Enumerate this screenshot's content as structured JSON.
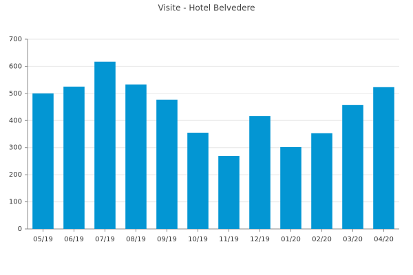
{
  "chart_data": {
    "type": "bar",
    "title": "Visite - Hotel Belvedere",
    "categories": [
      "05/19",
      "06/19",
      "07/19",
      "08/19",
      "09/19",
      "10/19",
      "11/19",
      "12/19",
      "01/20",
      "02/20",
      "03/20",
      "04/20"
    ],
    "values": [
      500,
      525,
      617,
      533,
      477,
      355,
      269,
      416,
      302,
      353,
      457,
      523
    ],
    "color": "#0396d3",
    "ylim": [
      0,
      700
    ],
    "yticks": [
      0,
      100,
      200,
      300,
      400,
      500,
      600,
      700
    ],
    "grid": true
  }
}
